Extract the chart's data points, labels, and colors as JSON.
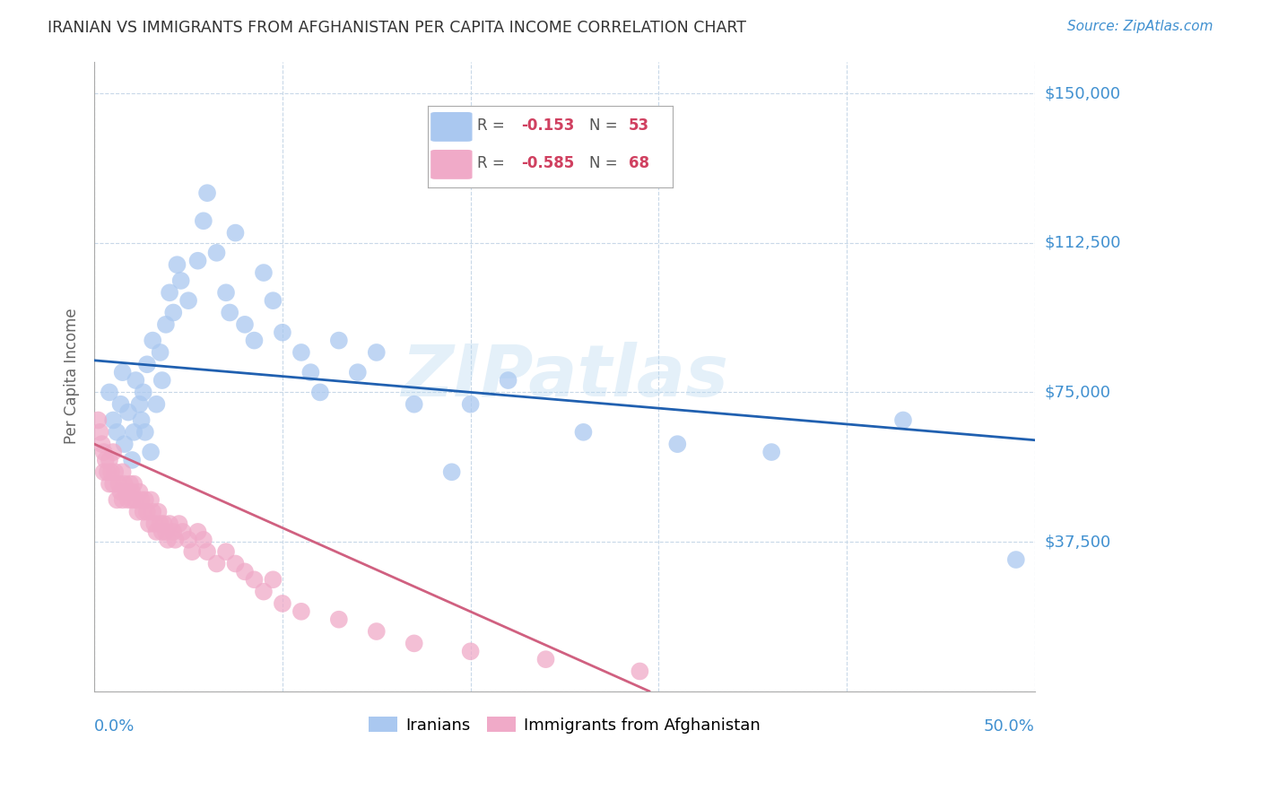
{
  "title": "IRANIAN VS IMMIGRANTS FROM AFGHANISTAN PER CAPITA INCOME CORRELATION CHART",
  "source": "Source: ZipAtlas.com",
  "ylabel": "Per Capita Income",
  "y_ticks": [
    0,
    37500,
    75000,
    112500,
    150000
  ],
  "y_tick_labels": [
    "",
    "$37,500",
    "$75,000",
    "$112,500",
    "$150,000"
  ],
  "xlim": [
    0.0,
    0.5
  ],
  "ylim": [
    0,
    158000
  ],
  "legend_r_iranian": "-0.153",
  "legend_n_iranian": "53",
  "legend_r_afghan": "-0.585",
  "legend_n_afghan": "68",
  "color_iranian": "#aac8f0",
  "color_afghan": "#f0aac8",
  "color_line_iranian": "#2060b0",
  "color_line_afghan": "#d06080",
  "color_axis_labels": "#4090d0",
  "color_title": "#333333",
  "watermark": "ZIPatlas",
  "iranian_x": [
    0.008,
    0.01,
    0.012,
    0.014,
    0.015,
    0.016,
    0.018,
    0.02,
    0.021,
    0.022,
    0.024,
    0.025,
    0.026,
    0.027,
    0.028,
    0.03,
    0.031,
    0.033,
    0.035,
    0.036,
    0.038,
    0.04,
    0.042,
    0.044,
    0.046,
    0.05,
    0.055,
    0.058,
    0.06,
    0.065,
    0.07,
    0.072,
    0.075,
    0.08,
    0.085,
    0.09,
    0.095,
    0.1,
    0.11,
    0.115,
    0.12,
    0.13,
    0.14,
    0.15,
    0.17,
    0.19,
    0.2,
    0.22,
    0.26,
    0.31,
    0.36,
    0.43,
    0.49
  ],
  "iranian_y": [
    75000,
    68000,
    65000,
    72000,
    80000,
    62000,
    70000,
    58000,
    65000,
    78000,
    72000,
    68000,
    75000,
    65000,
    82000,
    60000,
    88000,
    72000,
    85000,
    78000,
    92000,
    100000,
    95000,
    107000,
    103000,
    98000,
    108000,
    118000,
    125000,
    110000,
    100000,
    95000,
    115000,
    92000,
    88000,
    105000,
    98000,
    90000,
    85000,
    80000,
    75000,
    88000,
    80000,
    85000,
    72000,
    55000,
    72000,
    78000,
    65000,
    62000,
    60000,
    68000,
    33000
  ],
  "afghan_x": [
    0.002,
    0.003,
    0.004,
    0.005,
    0.005,
    0.006,
    0.007,
    0.008,
    0.008,
    0.009,
    0.01,
    0.01,
    0.011,
    0.012,
    0.013,
    0.014,
    0.015,
    0.015,
    0.016,
    0.017,
    0.018,
    0.019,
    0.02,
    0.02,
    0.021,
    0.022,
    0.023,
    0.024,
    0.025,
    0.026,
    0.027,
    0.028,
    0.029,
    0.03,
    0.031,
    0.032,
    0.033,
    0.034,
    0.035,
    0.036,
    0.037,
    0.038,
    0.039,
    0.04,
    0.042,
    0.043,
    0.045,
    0.047,
    0.05,
    0.052,
    0.055,
    0.058,
    0.06,
    0.065,
    0.07,
    0.075,
    0.08,
    0.085,
    0.09,
    0.095,
    0.1,
    0.11,
    0.13,
    0.15,
    0.17,
    0.2,
    0.24,
    0.29
  ],
  "afghan_y": [
    68000,
    65000,
    62000,
    60000,
    55000,
    58000,
    55000,
    52000,
    58000,
    55000,
    52000,
    60000,
    55000,
    48000,
    52000,
    50000,
    48000,
    55000,
    52000,
    50000,
    48000,
    52000,
    50000,
    48000,
    52000,
    48000,
    45000,
    50000,
    48000,
    45000,
    48000,
    45000,
    42000,
    48000,
    45000,
    42000,
    40000,
    45000,
    42000,
    40000,
    42000,
    40000,
    38000,
    42000,
    40000,
    38000,
    42000,
    40000,
    38000,
    35000,
    40000,
    38000,
    35000,
    32000,
    35000,
    32000,
    30000,
    28000,
    25000,
    28000,
    22000,
    20000,
    18000,
    15000,
    12000,
    10000,
    8000,
    5000
  ],
  "regression_iranian_x0": 0.0,
  "regression_iranian_x1": 0.5,
  "regression_iranian_y0": 83000,
  "regression_iranian_y1": 63000,
  "regression_afghan_x0": 0.0,
  "regression_afghan_x1": 0.295,
  "regression_afghan_y0": 62000,
  "regression_afghan_y1": 0
}
